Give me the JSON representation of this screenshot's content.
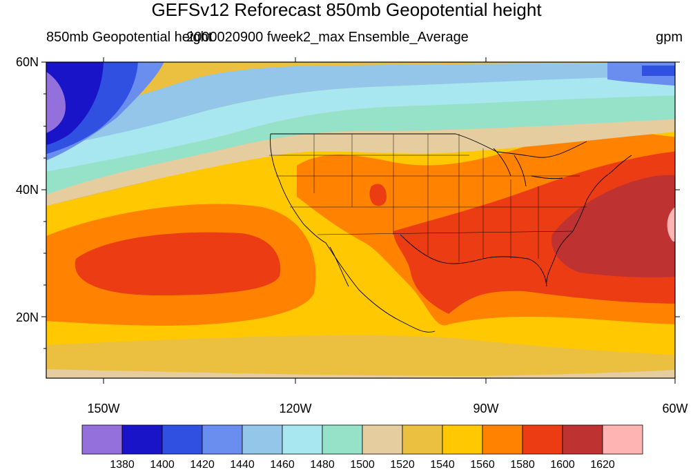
{
  "title": "GEFSv12 Reforecast 850mb Geopotential height",
  "subtitle_left": "850mb Geopotential height",
  "subtitle_mid": "2000020900 fweek2_max Ensemble_Average",
  "subtitle_right": "gpm",
  "map": {
    "lon_range": [
      -160,
      -60
    ],
    "lat_range": [
      10,
      60
    ],
    "lat_ticks": [
      {
        "value": 60,
        "label": "60N"
      },
      {
        "value": 40,
        "label": "40N"
      },
      {
        "value": 20,
        "label": "20N"
      }
    ],
    "lon_ticks": [
      {
        "value": -150,
        "label": "150W"
      },
      {
        "value": -120,
        "label": "120W"
      },
      {
        "value": -90,
        "label": "90W"
      },
      {
        "value": -60,
        "label": "60W"
      }
    ]
  },
  "colorbar": {
    "colors": [
      "#9370db",
      "#1a14c8",
      "#2f50e0",
      "#6a8ef0",
      "#94c6ea",
      "#a8e6f0",
      "#96e2c8",
      "#e6cda0",
      "#ebc040",
      "#ffc800",
      "#ff8200",
      "#eb3c14",
      "#be3232",
      "#ffb4b4"
    ],
    "labels": [
      "1380",
      "1400",
      "1420",
      "1440",
      "1460",
      "1480",
      "1500",
      "1520",
      "1540",
      "1560",
      "1580",
      "1600",
      "1620"
    ]
  }
}
